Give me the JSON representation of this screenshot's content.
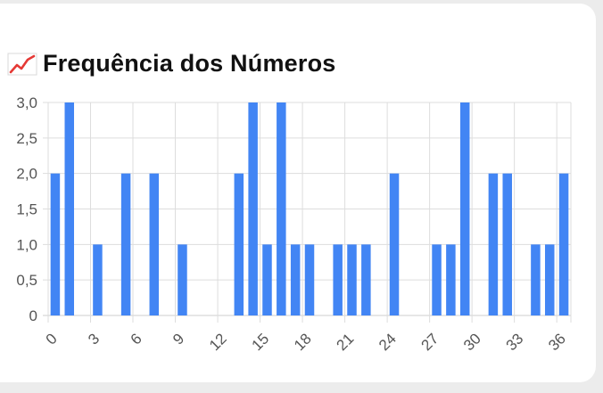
{
  "title": "Frequência dos Números",
  "title_icon": "chart-increasing-icon",
  "chart_data": {
    "type": "bar",
    "categories": [
      "0",
      "1",
      "2",
      "3",
      "4",
      "5",
      "6",
      "7",
      "8",
      "9",
      "10",
      "11",
      "12",
      "13",
      "14",
      "15",
      "16",
      "17",
      "18",
      "19",
      "20",
      "21",
      "22",
      "23",
      "24",
      "25",
      "26",
      "27",
      "28",
      "29",
      "30",
      "31",
      "32",
      "33",
      "34",
      "35",
      "36"
    ],
    "values": [
      2,
      3,
      0,
      1,
      0,
      2,
      0,
      2,
      0,
      1,
      0,
      0,
      0,
      2,
      3,
      1,
      3,
      1,
      1,
      0,
      1,
      1,
      1,
      0,
      2,
      0,
      0,
      1,
      1,
      3,
      0,
      2,
      2,
      0,
      1,
      1,
      2
    ],
    "title": "Frequência dos Números",
    "xlabel": "",
    "ylabel": "",
    "ylim": [
      0,
      3
    ],
    "y_ticks": [
      "0",
      "0,5",
      "1,0",
      "1,5",
      "2,0",
      "2,5",
      "3,0"
    ],
    "x_tick_labels": [
      "0",
      "3",
      "6",
      "9",
      "12",
      "15",
      "18",
      "21",
      "24",
      "27",
      "30",
      "33",
      "36"
    ],
    "grid": true,
    "colors": {
      "bar": "#4285f4",
      "grid": "#dddddd",
      "axis": "#cccccc",
      "text": "#555555"
    }
  }
}
